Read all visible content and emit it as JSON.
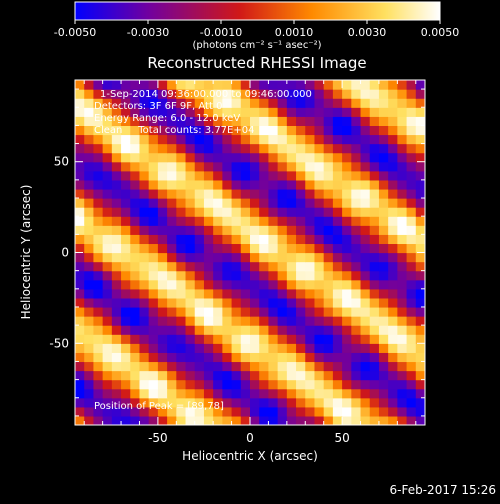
{
  "chart_data": {
    "type": "heatmap",
    "title": "Reconstructed RHESSI Image",
    "xlabel": "Heliocentric X (arcsec)",
    "ylabel": "Heliocentric Y (arcsec)",
    "xlim": [
      -95,
      95
    ],
    "ylim": [
      -95,
      95
    ],
    "x_ticks": [
      -50,
      0,
      50
    ],
    "y_ticks": [
      -50,
      0,
      50
    ],
    "colorbar": {
      "range": [
        -0.005,
        0.005
      ],
      "ticks": [
        "-0.0050",
        "-0.0030",
        "-0.0010",
        "0.0010",
        "0.0030",
        "0.0050"
      ],
      "tick_values": [
        -0.005,
        -0.003,
        -0.001,
        0.001,
        0.003,
        0.005
      ],
      "unit_label": "(photons cm⁻² s⁻¹ asec⁻²)",
      "colors": [
        "#0000ff",
        "#7000a0",
        "#d01818",
        "#ff8a00",
        "#ffe060",
        "#ffffff"
      ]
    },
    "annotations": {
      "time": "1-Sep-2014 09:36:00.000 to 09:46:00.000",
      "detectors": "Detectors: 3F 6F 9F, Att 0",
      "energy": "Energy Range: 6.0 - 12.0 keV",
      "clean": "Clean     Total counts: 3.77E+04",
      "peak": "Position of Peak = [89,78]"
    },
    "pattern": {
      "description_free": true,
      "stripe_direction_deg": 36,
      "stripe_period_arcsec": 50,
      "peak_position": [
        89,
        78
      ],
      "value_range": [
        -0.005,
        0.005
      ]
    }
  },
  "footer": {
    "date": "6-Feb-2017 15:26"
  }
}
